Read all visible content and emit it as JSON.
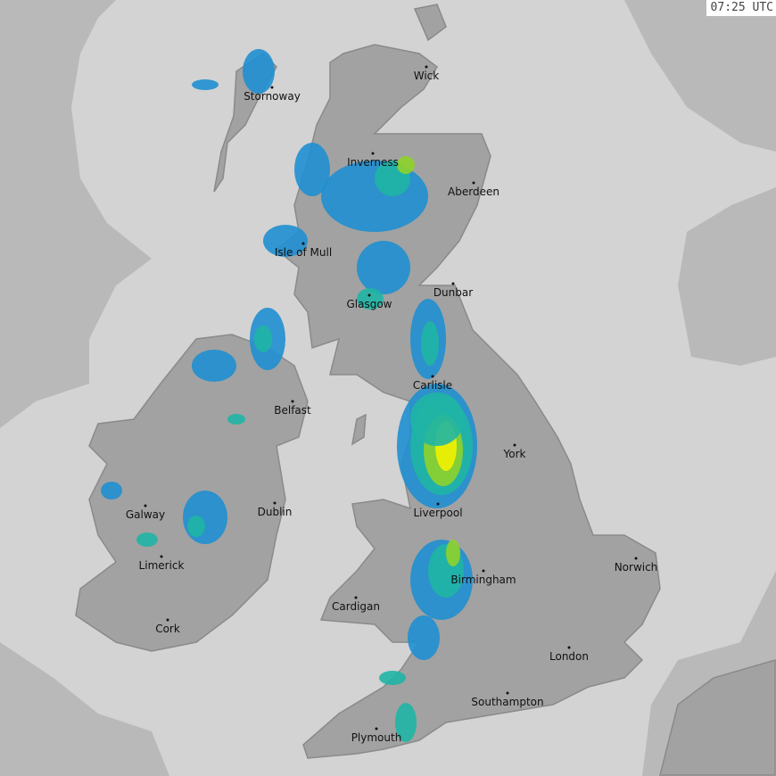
{
  "timestamp": "07:25 UTC",
  "colors": {
    "outside_coverage": "#b9b9b9",
    "coverage": "#d3d3d3",
    "land": "#a2a2a2",
    "borders": "#8a8a8a",
    "rain_light": "#1f8fd0",
    "rain_moderate": "#1fb5a5",
    "rain_heavy": "#8fd22a",
    "rain_very_heavy": "#f2f200"
  },
  "cities": [
    "Stornoway",
    "Wick",
    "Inverness",
    "Aberdeen",
    "Isle of Mull",
    "Dunbar",
    "Glasgow",
    "Carlisle",
    "Belfast",
    "York",
    "Dublin",
    "Galway",
    "Liverpool",
    "Norwich",
    "Limerick",
    "Birmingham",
    "Cardigan",
    "Cork",
    "London",
    "Southampton",
    "Plymouth"
  ]
}
